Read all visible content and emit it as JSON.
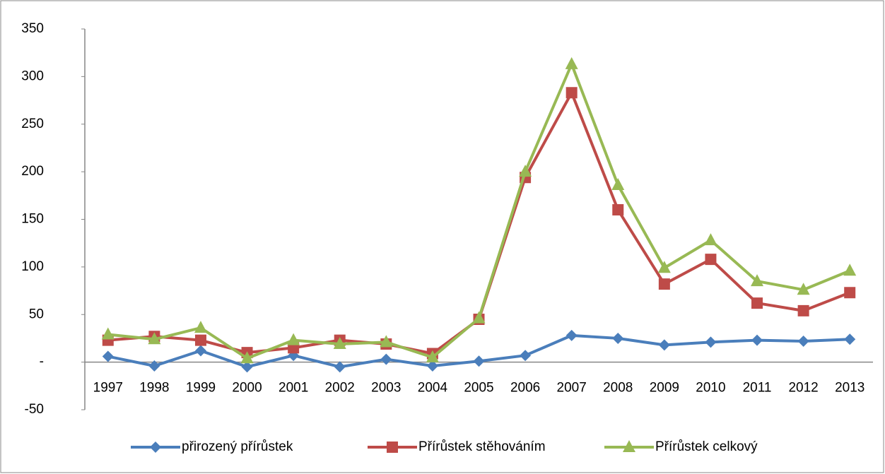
{
  "chart_data": {
    "type": "line",
    "categories": [
      "1997",
      "1998",
      "1999",
      "2000",
      "2001",
      "2002",
      "2003",
      "2004",
      "2005",
      "2006",
      "2007",
      "2008",
      "2009",
      "2010",
      "2011",
      "2012",
      "2013"
    ],
    "series": [
      {
        "name": "přirozený přírůstek",
        "color": "#4a7ebb",
        "marker": "diamond",
        "values": [
          6,
          -4,
          12,
          -5,
          7,
          -5,
          3,
          -4,
          1,
          7,
          28,
          25,
          18,
          21,
          23,
          22,
          24
        ]
      },
      {
        "name": "Přírůstek stěhováním",
        "color": "#be4b48",
        "marker": "square",
        "values": [
          23,
          27,
          23,
          10,
          15,
          23,
          19,
          9,
          45,
          194,
          283,
          160,
          82,
          108,
          62,
          54,
          73
        ]
      },
      {
        "name": "Přírůstek celkový",
        "color": "#98b954",
        "marker": "triangle",
        "values": [
          29,
          24,
          36,
          4,
          23,
          19,
          21,
          5,
          46,
          200,
          313,
          186,
          99,
          128,
          85,
          76,
          96
        ]
      }
    ],
    "ylim": [
      -50,
      350
    ],
    "yticks": [
      -50,
      {
        "value": 0,
        "label": "-"
      },
      50,
      100,
      150,
      200,
      250,
      300,
      350
    ],
    "grid": false,
    "legend": "bottom"
  }
}
